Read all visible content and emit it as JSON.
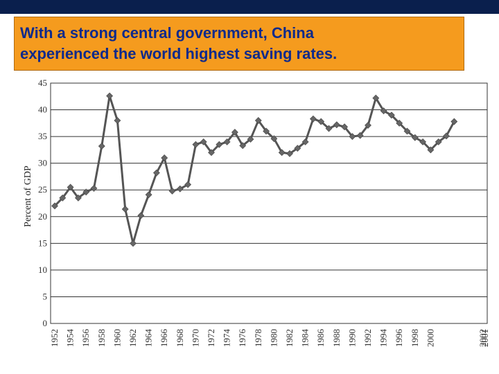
{
  "title": {
    "lines": [
      "With a strong central government, China",
      "experienced the world highest saving rates."
    ]
  },
  "colors": {
    "top_bar": "#0a1f4d",
    "title_box": "#f59b1e",
    "title_text": "#0d2a8c",
    "line": "#555555",
    "marker": "#666666",
    "grid": "#333333"
  },
  "chart_data": {
    "type": "line",
    "ylabel": "Percent of GDP",
    "xlabel": "",
    "ylim": [
      0,
      45
    ],
    "xlim": [
      1952,
      2002
    ],
    "y_ticks": [
      "0",
      "5",
      "10",
      "15",
      "20",
      "25",
      "30",
      "35",
      "40",
      "45"
    ],
    "x_ticks": [
      "1952",
      "1954",
      "1956",
      "1958",
      "1960",
      "1962",
      "1964",
      "1966",
      "1968",
      "1970",
      "1972",
      "1974",
      "1976",
      "1978",
      "1980",
      "1982",
      "1984",
      "1986",
      "1988",
      "1990",
      "1992",
      "1994",
      "1996",
      "1998",
      "2000",
      "2001",
      "2002"
    ],
    "grid": "horizontal",
    "marker": "diamond",
    "x": [
      1952,
      1953,
      1954,
      1955,
      1956,
      1957,
      1958,
      1959,
      1960,
      1961,
      1962,
      1963,
      1964,
      1965,
      1966,
      1967,
      1968,
      1969,
      1970,
      1971,
      1972,
      1973,
      1974,
      1975,
      1976,
      1977,
      1978,
      1979,
      1980,
      1981,
      1982,
      1983,
      1984,
      1985,
      1986,
      1987,
      1988,
      1989,
      1990,
      1991,
      1992,
      1993,
      1994,
      1995,
      1996,
      1997,
      1998,
      1999,
      2000,
      2001,
      2002,
      2003
    ],
    "series": [
      {
        "values": [
          22,
          23.5,
          25.5,
          23.5,
          24.6,
          25.3,
          33.2,
          42.6,
          38,
          21.4,
          15,
          20.2,
          24.1,
          28.2,
          31,
          24.8,
          25.2,
          26,
          33.5,
          34,
          32,
          33.5,
          34,
          35.8,
          33.3,
          34.5,
          38,
          36,
          34.6,
          32,
          31.8,
          32.8,
          34,
          38.3,
          37.8,
          36.5,
          37.2,
          36.8,
          35,
          35.2,
          37.1,
          42.2,
          39.8,
          39,
          37.5,
          36,
          34.8,
          34,
          32.5,
          34,
          35.1,
          37.8
        ]
      }
    ]
  }
}
